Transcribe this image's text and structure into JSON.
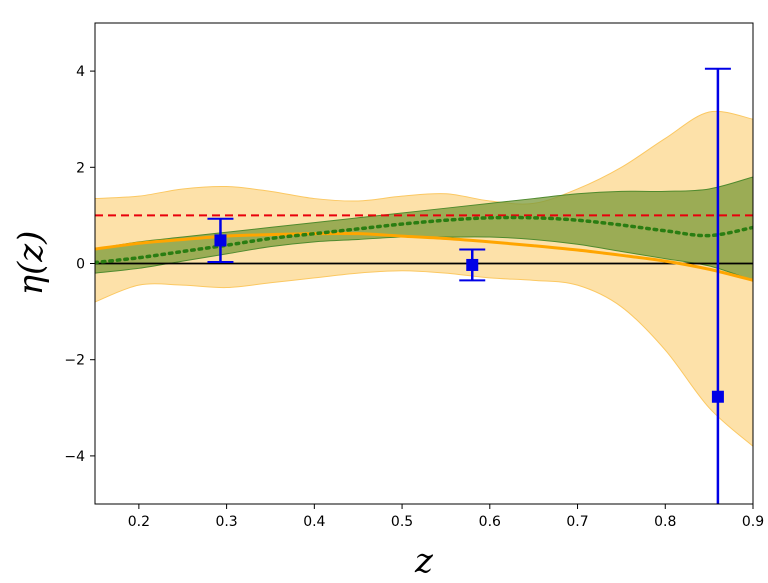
{
  "chart_data": {
    "type": "line",
    "xlabel": "z",
    "ylabel": "η(z)",
    "xlim": [
      0.15,
      0.9
    ],
    "ylim": [
      -5,
      5
    ],
    "xticks": [
      0.2,
      0.3,
      0.4,
      0.5,
      0.6,
      0.7,
      0.8,
      0.9
    ],
    "xtick_labels": [
      "0.2",
      "0.3",
      "0.4",
      "0.5",
      "0.6",
      "0.7",
      "0.8",
      "0.9"
    ],
    "yticks": [
      -4,
      -2,
      0,
      2,
      4
    ],
    "ytick_labels": [
      "−4",
      "−2",
      "0",
      "2",
      "4"
    ],
    "grid": false,
    "reference_lines": [
      {
        "y": 1,
        "color": "#e8000b",
        "style": "dashed"
      },
      {
        "y": 0,
        "color": "#000000",
        "style": "solid"
      }
    ],
    "series": [
      {
        "kind": "band",
        "color": "#fbc862",
        "x": [
          0.15,
          0.2,
          0.25,
          0.3,
          0.35,
          0.4,
          0.45,
          0.5,
          0.55,
          0.6,
          0.65,
          0.7,
          0.75,
          0.8,
          0.85,
          0.9
        ],
        "upper": [
          1.35,
          1.4,
          1.55,
          1.6,
          1.5,
          1.35,
          1.3,
          1.4,
          1.45,
          1.3,
          1.25,
          1.55,
          2.0,
          2.6,
          3.15,
          3.0
        ],
        "lower": [
          -0.8,
          -0.45,
          -0.45,
          -0.5,
          -0.4,
          -0.3,
          -0.2,
          -0.15,
          -0.2,
          -0.3,
          -0.35,
          -0.45,
          -0.9,
          -1.8,
          -3.0,
          -3.8
        ]
      },
      {
        "kind": "band",
        "color": "#7a9a3a",
        "x": [
          0.15,
          0.2,
          0.25,
          0.3,
          0.35,
          0.4,
          0.45,
          0.5,
          0.55,
          0.6,
          0.65,
          0.7,
          0.75,
          0.8,
          0.85,
          0.9
        ],
        "upper": [
          0.3,
          0.45,
          0.55,
          0.65,
          0.75,
          0.85,
          0.95,
          1.05,
          1.15,
          1.25,
          1.35,
          1.45,
          1.5,
          1.5,
          1.55,
          1.8
        ],
        "lower": [
          -0.2,
          -0.1,
          0.05,
          0.2,
          0.35,
          0.45,
          0.5,
          0.55,
          0.55,
          0.55,
          0.5,
          0.4,
          0.25,
          0.1,
          -0.05,
          -0.35
        ]
      },
      {
        "kind": "line",
        "color": "#ffa500",
        "x": [
          0.15,
          0.2,
          0.25,
          0.3,
          0.35,
          0.4,
          0.45,
          0.5,
          0.55,
          0.6,
          0.65,
          0.7,
          0.75,
          0.8,
          0.85,
          0.9
        ],
        "y": [
          0.3,
          0.42,
          0.5,
          0.57,
          0.6,
          0.62,
          0.62,
          0.57,
          0.52,
          0.45,
          0.37,
          0.28,
          0.17,
          0.05,
          -0.12,
          -0.35
        ]
      },
      {
        "kind": "line",
        "color": "#2a7d12",
        "style": "dotted",
        "x": [
          0.15,
          0.2,
          0.25,
          0.3,
          0.35,
          0.4,
          0.45,
          0.5,
          0.55,
          0.6,
          0.65,
          0.7,
          0.75,
          0.8,
          0.85,
          0.9
        ],
        "y": [
          0.02,
          0.12,
          0.25,
          0.38,
          0.52,
          0.62,
          0.72,
          0.82,
          0.9,
          0.95,
          0.95,
          0.9,
          0.8,
          0.68,
          0.58,
          0.75
        ]
      },
      {
        "kind": "errorbar",
        "color": "#0000e6",
        "x": [
          0.293,
          0.58,
          0.86
        ],
        "y": [
          0.48,
          -0.03,
          -2.77
        ],
        "yerr_low": [
          0.45,
          0.32,
          2.3
        ],
        "yerr_high": [
          0.45,
          0.32,
          6.82
        ]
      }
    ]
  }
}
